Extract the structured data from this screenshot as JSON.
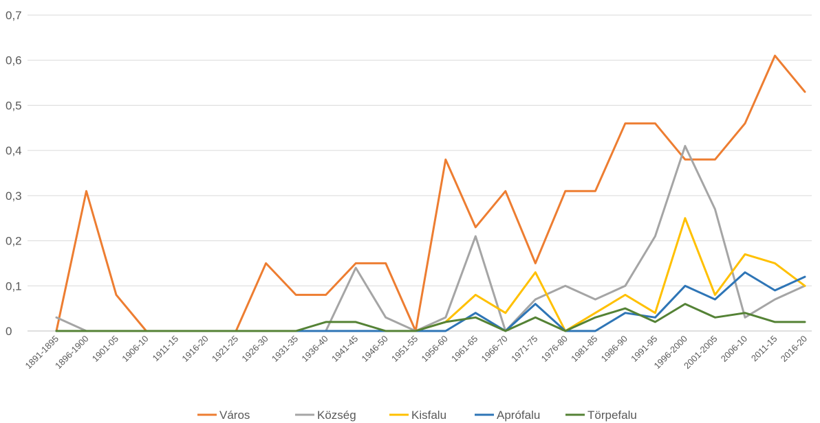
{
  "chart_data": {
    "type": "line",
    "title": "",
    "xlabel": "",
    "ylabel": "",
    "ylim": [
      0,
      0.7
    ],
    "ytick_labels": [
      "0",
      "0,1",
      "0,2",
      "0,3",
      "0,4",
      "0,5",
      "0,6",
      "0,7"
    ],
    "grid": true,
    "legend_position": "bottom",
    "categories": [
      "1891-1895",
      "1896-1900",
      "1901-05",
      "1906-10",
      "1911-15",
      "1916-20",
      "1921-25",
      "1926-30",
      "1931-35",
      "1936-40",
      "1941-45",
      "1946-50",
      "1951-55",
      "1956-60",
      "1961-65",
      "1966-70",
      "1971-75",
      "1976-80",
      "1981-85",
      "1986-90",
      "1991-95",
      "1996-2000",
      "2001-2005",
      "2006-10",
      "2011-15",
      "2016-20"
    ],
    "series": [
      {
        "name": "Város",
        "color": "#ED7D31",
        "values": [
          0,
          0.31,
          0.08,
          0,
          0,
          0,
          0,
          0.15,
          0.08,
          0.08,
          0.15,
          0.15,
          0,
          0.38,
          0.23,
          0.31,
          0.15,
          0.31,
          0.31,
          0.46,
          0.46,
          0.38,
          0.38,
          0.46,
          0.61,
          0.53
        ]
      },
      {
        "name": "Község",
        "color": "#A5A5A5",
        "values": [
          0.03,
          0,
          0,
          0,
          0,
          0,
          0,
          0,
          0,
          0,
          0.14,
          0.03,
          0,
          0.03,
          0.21,
          0,
          0.07,
          0.1,
          0.07,
          0.1,
          0.21,
          0.41,
          0.27,
          0.03,
          0.07,
          0.1
        ]
      },
      {
        "name": "Kisfalu",
        "color": "#FFC000",
        "values": [
          0,
          0,
          0,
          0,
          0,
          0,
          0,
          0,
          0,
          0,
          0,
          0,
          0,
          0.02,
          0.08,
          0.04,
          0.13,
          0,
          0.04,
          0.08,
          0.04,
          0.25,
          0.08,
          0.17,
          0.15,
          0.1
        ]
      },
      {
        "name": "Aprófalu",
        "color": "#2E75B6",
        "values": [
          0,
          0,
          0,
          0,
          0,
          0,
          0,
          0,
          0,
          0,
          0,
          0,
          0,
          0,
          0.04,
          0,
          0.06,
          0,
          0,
          0.04,
          0.03,
          0.1,
          0.07,
          0.13,
          0.09,
          0.12
        ]
      },
      {
        "name": "Törpefalu",
        "color": "#548235",
        "values": [
          0,
          0,
          0,
          0,
          0,
          0,
          0,
          0,
          0,
          0.02,
          0.02,
          0,
          0,
          0.02,
          0.03,
          0,
          0.03,
          0,
          0.03,
          0.05,
          0.02,
          0.06,
          0.03,
          0.04,
          0.02,
          0.02
        ]
      }
    ]
  }
}
